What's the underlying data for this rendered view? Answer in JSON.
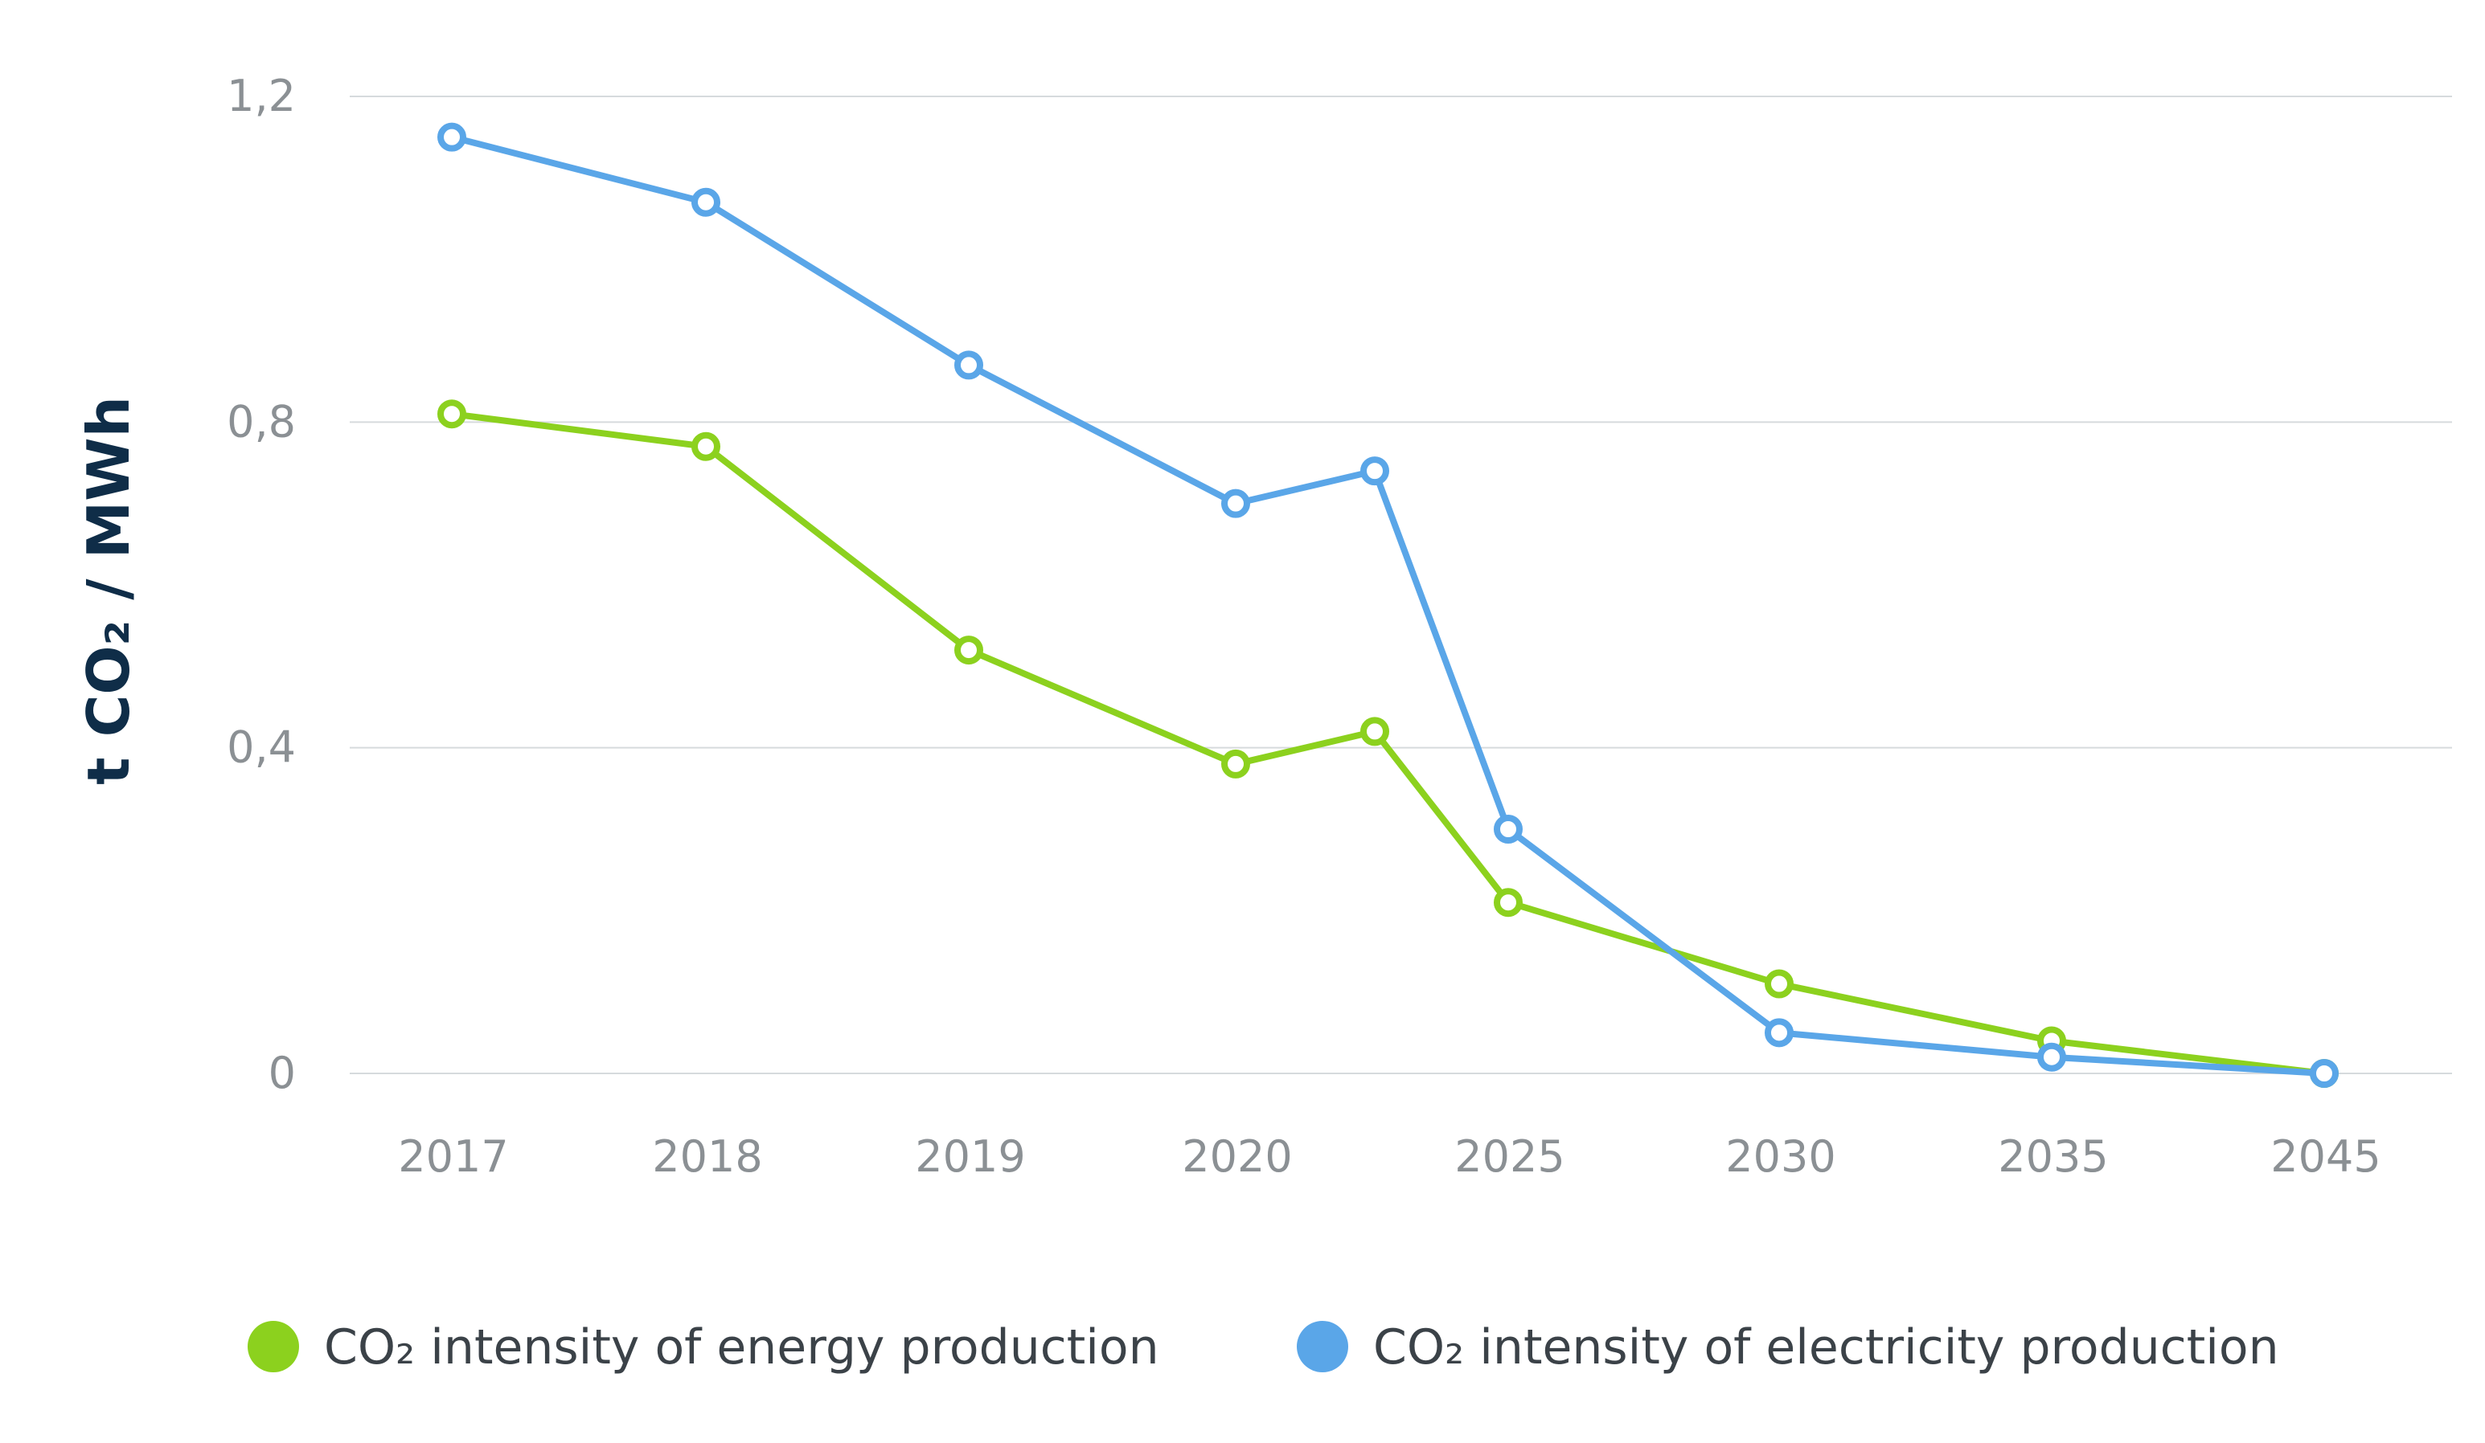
{
  "chart_data": {
    "type": "line",
    "categories": [
      "2017",
      "2018",
      "2019",
      "2020",
      "",
      "2025",
      "2030",
      "2035",
      "2045"
    ],
    "series": [
      {
        "name": "CO₂ intensity of energy production",
        "color": "#8cd11e",
        "values": [
          0.81,
          0.77,
          0.52,
          0.38,
          0.42,
          0.21,
          0.11,
          0.04,
          0.0
        ]
      },
      {
        "name": "CO₂ intensity of electricity production",
        "color": "#5aa6e8",
        "values": [
          1.15,
          1.07,
          0.87,
          0.7,
          0.74,
          0.3,
          0.05,
          0.02,
          0.0
        ]
      }
    ],
    "ylabel": "t CO₂ / MWh",
    "ylim": [
      0,
      1.2
    ],
    "yticks": [
      0,
      0.4,
      0.8,
      1.2
    ],
    "ytick_labels": [
      "0",
      "0,4",
      "0,8",
      "1,2"
    ],
    "xtick_labels": [
      "2017",
      "2018",
      "2019",
      "2020",
      "2025",
      "2030",
      "2035",
      "2045"
    ],
    "grid": true,
    "legend_position": "bottom"
  }
}
